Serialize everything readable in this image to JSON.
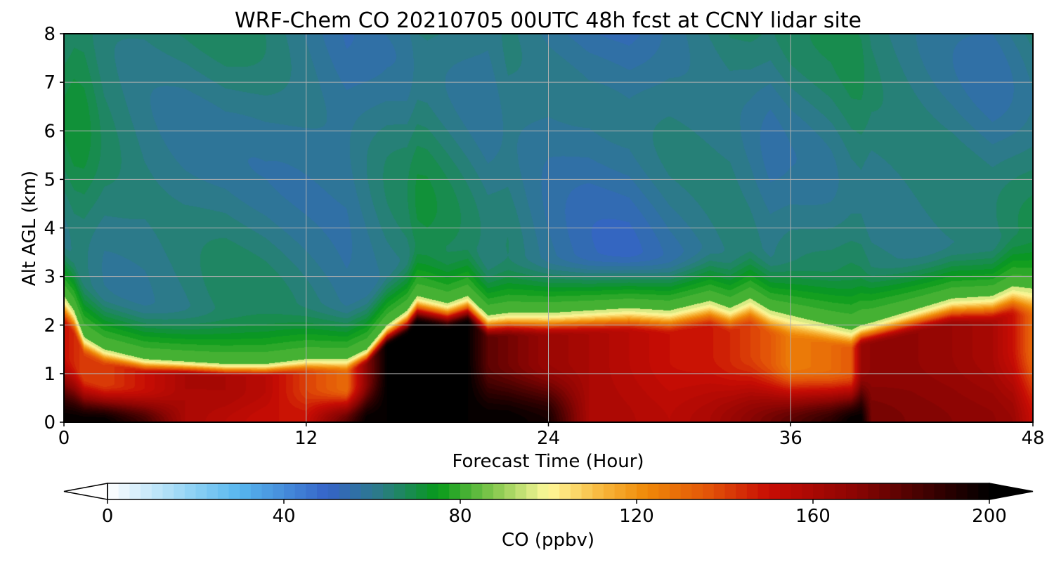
{
  "chart_data": {
    "type": "heatmap",
    "title": "WRF-Chem CO  20210705 00UTC 48h fcst at CCNY lidar site",
    "xlabel": "Forecast Time (Hour)",
    "ylabel": "Alt AGL (km)",
    "xlim": [
      0,
      48
    ],
    "ylim": [
      0,
      8
    ],
    "x_ticks": [
      0,
      12,
      24,
      36,
      48
    ],
    "y_ticks": [
      0,
      1,
      2,
      3,
      4,
      5,
      6,
      7,
      8
    ],
    "grid": true,
    "z_variable": "CO  (ppbv)",
    "colorbar": {
      "label": "CO  (ppbv)",
      "range": [
        0,
        200
      ],
      "ticks": [
        0,
        40,
        80,
        120,
        160,
        200
      ],
      "extend": "both",
      "orientation": "horizontal",
      "stops": [
        {
          "value": 0,
          "color": "#ffffff"
        },
        {
          "value": 20,
          "color": "#8ad0f4"
        },
        {
          "value": 30,
          "color": "#56b6ee"
        },
        {
          "value": 50,
          "color": "#3563c8"
        },
        {
          "value": 62,
          "color": "#2b7c86"
        },
        {
          "value": 75,
          "color": "#069a1a"
        },
        {
          "value": 88,
          "color": "#88c94f"
        },
        {
          "value": 100,
          "color": "#fff99a"
        },
        {
          "value": 112,
          "color": "#f7b73c"
        },
        {
          "value": 122,
          "color": "#ef8a08"
        },
        {
          "value": 136,
          "color": "#e35508"
        },
        {
          "value": 150,
          "color": "#c80c04"
        },
        {
          "value": 170,
          "color": "#8a0503"
        },
        {
          "value": 190,
          "color": "#2c0000"
        },
        {
          "value": 200,
          "color": "#000000"
        }
      ]
    },
    "profile_x": [
      0,
      0.5,
      1,
      2,
      4,
      6,
      8,
      10,
      12,
      14,
      15,
      16,
      17,
      17.5,
      18,
      19,
      20,
      21,
      22,
      24,
      26,
      28,
      30,
      32,
      33,
      34,
      35,
      36,
      38,
      39,
      39.5,
      40,
      42,
      44,
      46,
      47,
      48
    ],
    "pbl_top_km": [
      2.6,
      2.3,
      1.75,
      1.5,
      1.3,
      1.25,
      1.2,
      1.2,
      1.3,
      1.3,
      1.5,
      2.0,
      2.3,
      2.6,
      2.55,
      2.45,
      2.6,
      2.2,
      2.25,
      2.25,
      2.3,
      2.35,
      2.3,
      2.5,
      2.35,
      2.55,
      2.3,
      2.2,
      2.0,
      1.9,
      2.0,
      2.05,
      2.3,
      2.55,
      2.6,
      2.8,
      2.75
    ],
    "pbl_core_ppbv": [
      150,
      145,
      140,
      140,
      150,
      160,
      160,
      155,
      140,
      130,
      170,
      200,
      200,
      200,
      200,
      200,
      200,
      180,
      175,
      165,
      160,
      155,
      150,
      148,
      145,
      140,
      135,
      125,
      130,
      135,
      165,
      168,
      168,
      165,
      160,
      150,
      130
    ],
    "surface_ppbv": [
      200,
      200,
      200,
      200,
      185,
      160,
      155,
      150,
      150,
      180,
      200,
      200,
      200,
      200,
      200,
      200,
      200,
      200,
      200,
      195,
      160,
      158,
      155,
      160,
      165,
      170,
      175,
      180,
      190,
      200,
      200,
      175,
      172,
      170,
      168,
      165,
      150
    ],
    "free_troposphere_ppbv": [
      66,
      68,
      68,
      64,
      62,
      62,
      63,
      62,
      60,
      58,
      60,
      62,
      63,
      66,
      66,
      64,
      62,
      60,
      62,
      58,
      56,
      56,
      60,
      62,
      63,
      62,
      60,
      62,
      64,
      66,
      66,
      64,
      63,
      62,
      60,
      62,
      64
    ]
  }
}
